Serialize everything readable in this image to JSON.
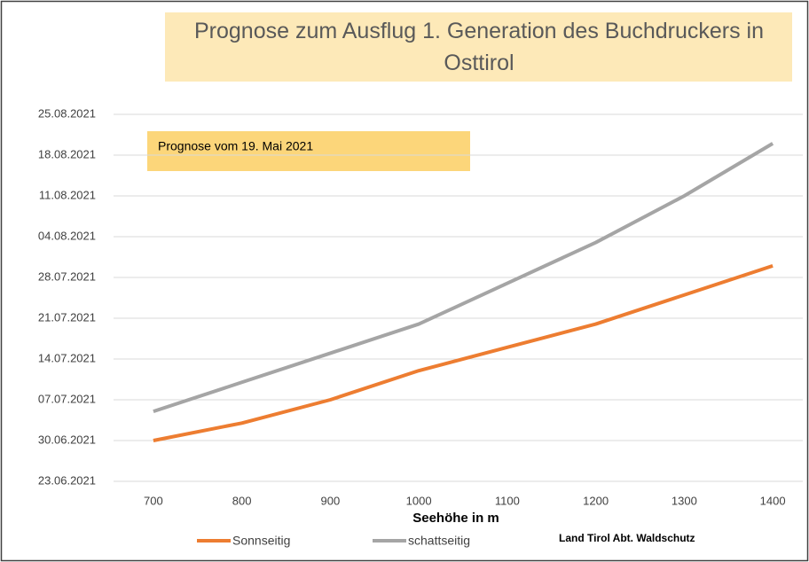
{
  "chart_data": {
    "type": "line",
    "title": "Prognose zum Ausflug 1. Generation des Buchdruckers in Osttirol",
    "annotation": "Prognose vom 19. Mai 2021",
    "x_label": "Seehöhe in m",
    "source": "Land Tirol  Abt. Waldschutz",
    "x": [
      700,
      800,
      900,
      1000,
      1100,
      1200,
      1300,
      1400
    ],
    "series": [
      {
        "name": "Sonnseitig",
        "color": "#ed7d31",
        "values": [
          "2021-06-30",
          "2021-07-03",
          "2021-07-07",
          "2021-07-12",
          "2021-07-16",
          "2021-07-20",
          "2021-07-25",
          "2021-07-30"
        ]
      },
      {
        "name": "schattseitig",
        "color": "#a5a5a5",
        "values": [
          "2021-07-05",
          "2021-07-10",
          "2021-07-15",
          "2021-07-20",
          "2021-07-27",
          "2021-08-03",
          "2021-08-11",
          "2021-08-20"
        ]
      }
    ],
    "xlim": [
      660,
      1440
    ],
    "xticks": [
      700,
      800,
      900,
      1000,
      1100,
      1200,
      1300,
      1400
    ],
    "ylim": [
      "2021-06-23",
      "2021-08-25"
    ],
    "yticks": [
      {
        "value": "2021-06-23",
        "label": "23.06.2021"
      },
      {
        "value": "2021-06-30",
        "label": "30.06.2021"
      },
      {
        "value": "2021-07-07",
        "label": "07.07.2021"
      },
      {
        "value": "2021-07-14",
        "label": "14.07.2021"
      },
      {
        "value": "2021-07-21",
        "label": "21.07.2021"
      },
      {
        "value": "2021-07-28",
        "label": "28.07.2021"
      },
      {
        "value": "2021-08-04",
        "label": "04.08.2021"
      },
      {
        "value": "2021-08-11",
        "label": "11.08.2021"
      },
      {
        "value": "2021-08-18",
        "label": "18.08.2021"
      },
      {
        "value": "2021-08-25",
        "label": "25.08.2021"
      }
    ],
    "grid": true,
    "legend": "bottom-left"
  }
}
